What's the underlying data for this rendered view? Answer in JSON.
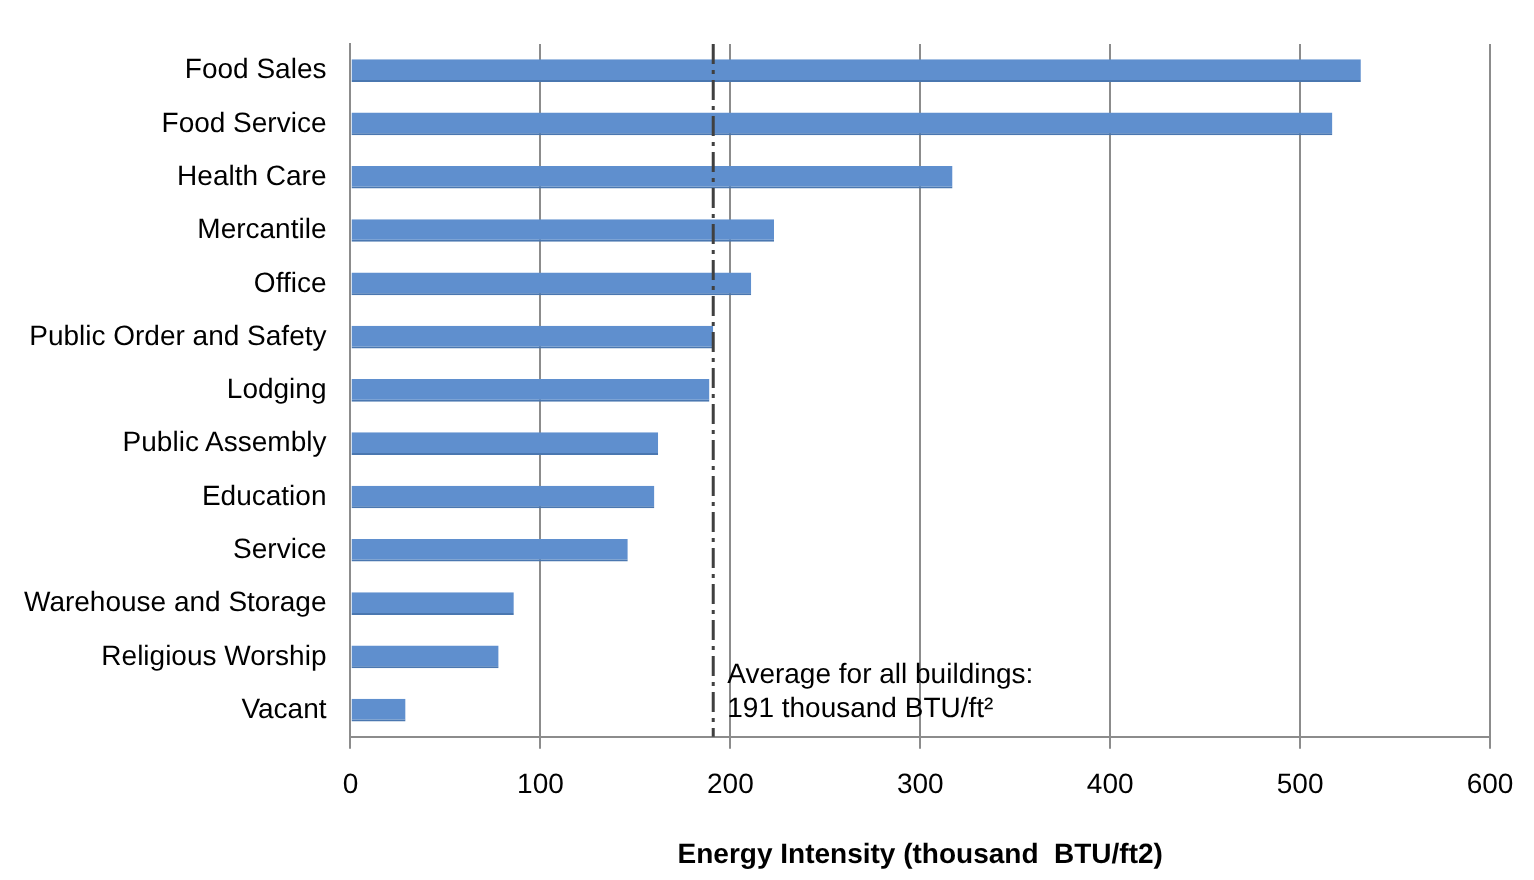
{
  "chart_data": {
    "type": "bar",
    "orientation": "horizontal",
    "xlabel": "Energy Intensity (thousand  BTU/ft2)",
    "categories": [
      "Food Sales",
      "Food Service",
      "Health Care",
      "Mercantile",
      "Office",
      "Public Order and Safety",
      "Lodging",
      "Public Assembly",
      "Education",
      "Service",
      "Warehouse and Storage",
      "Religious Worship",
      "Vacant"
    ],
    "values": [
      532,
      517,
      317,
      223,
      211,
      191,
      189,
      162,
      160,
      146,
      86,
      78,
      29
    ],
    "color": "#5f8fce",
    "xlim": [
      0,
      600
    ],
    "xticks": [
      0,
      100,
      200,
      300,
      400,
      500,
      600
    ],
    "grid": "x",
    "legend": false,
    "ref_lines": [
      {
        "axis": "x",
        "value": 191,
        "label": "Average for all buildings:\n191 thousand BTU/ft²",
        "color": "#404040",
        "line_style": "dashdot"
      }
    ]
  }
}
